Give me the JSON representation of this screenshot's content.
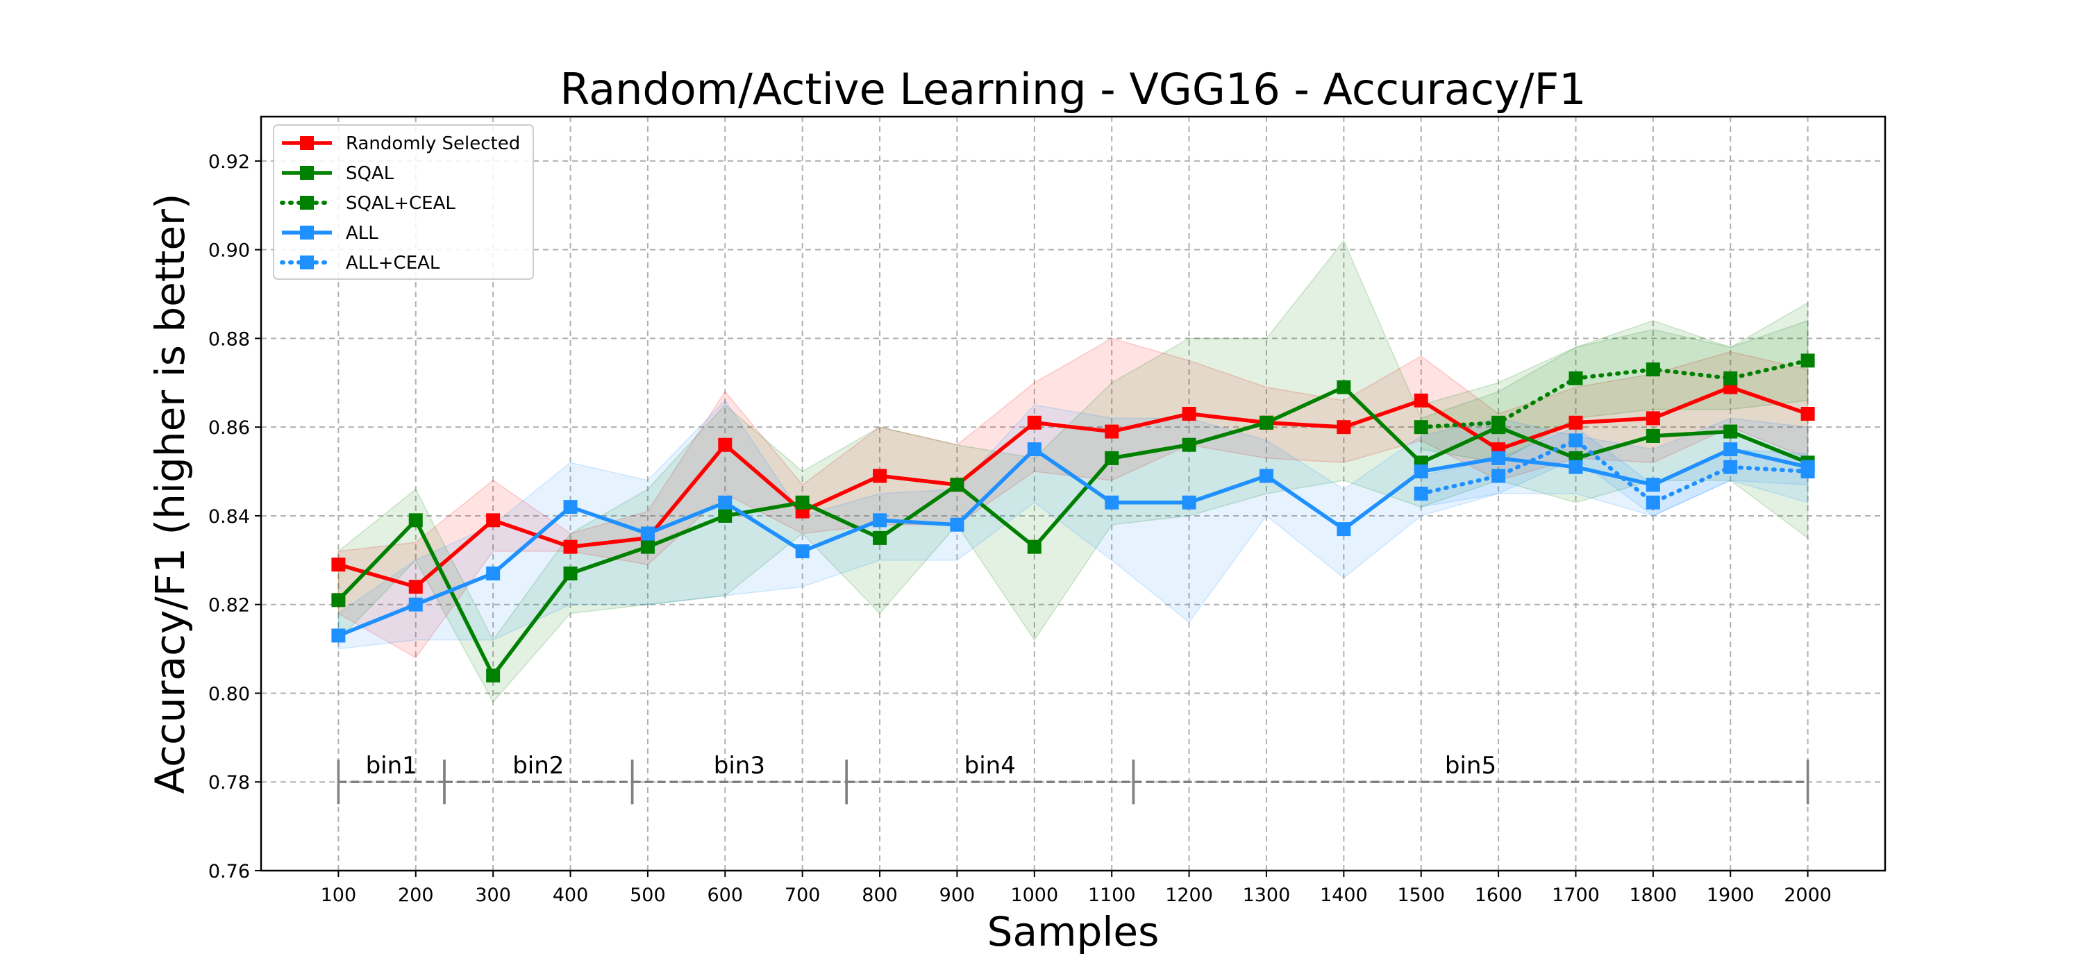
{
  "chart_data": {
    "type": "line",
    "title": "Random/Active Learning - VGG16 - Accuracy/F1",
    "xlabel": "Samples",
    "ylabel": "Accuracy/F1 (higher is better)",
    "xlim": [
      0,
      2100
    ],
    "ylim": [
      0.76,
      0.93
    ],
    "x_ticks": [
      100,
      200,
      300,
      400,
      500,
      600,
      700,
      800,
      900,
      1000,
      1100,
      1200,
      1300,
      1400,
      1500,
      1600,
      1700,
      1800,
      1900,
      2000
    ],
    "x_tick_labels": [
      "100",
      "200",
      "300",
      "400",
      "500",
      "600",
      "700",
      "800",
      "900",
      "1000",
      "1100",
      "1200",
      "1300",
      "1400",
      "1500",
      "1600",
      "1700",
      "1800",
      "1900",
      "2000"
    ],
    "y_ticks": [
      0.76,
      0.78,
      0.8,
      0.82,
      0.84,
      0.86,
      0.88,
      0.9,
      0.92
    ],
    "y_tick_labels": [
      "0.76",
      "0.78",
      "0.80",
      "0.82",
      "0.84",
      "0.86",
      "0.88",
      "0.90",
      "0.92"
    ],
    "grid": true,
    "legend_position": "top-left",
    "series": [
      {
        "name": "Randomly Selected",
        "color": "#ff0000",
        "line_style": "solid",
        "marker": "square",
        "x": [
          100,
          200,
          300,
          400,
          500,
          600,
          700,
          800,
          900,
          1000,
          1100,
          1200,
          1300,
          1400,
          1500,
          1600,
          1700,
          1800,
          1900,
          2000
        ],
        "y": [
          0.829,
          0.824,
          0.839,
          0.833,
          0.835,
          0.856,
          0.841,
          0.849,
          0.847,
          0.861,
          0.859,
          0.863,
          0.861,
          0.86,
          0.866,
          0.855,
          0.861,
          0.862,
          0.869,
          0.863
        ],
        "band_lower": [
          0.818,
          0.808,
          0.832,
          0.832,
          0.829,
          0.845,
          0.836,
          0.838,
          0.838,
          0.85,
          0.848,
          0.856,
          0.853,
          0.852,
          0.857,
          0.848,
          0.853,
          0.852,
          0.86,
          0.853
        ],
        "band_upper": [
          0.832,
          0.834,
          0.848,
          0.836,
          0.841,
          0.868,
          0.847,
          0.86,
          0.856,
          0.87,
          0.88,
          0.875,
          0.869,
          0.866,
          0.876,
          0.863,
          0.869,
          0.872,
          0.877,
          0.873
        ]
      },
      {
        "name": "SQAL",
        "color": "#008000",
        "line_style": "solid",
        "marker": "square",
        "x": [
          100,
          200,
          300,
          400,
          500,
          600,
          700,
          800,
          900,
          1000,
          1100,
          1200,
          1300,
          1400,
          1500,
          1600,
          1700,
          1800,
          1900,
          2000
        ],
        "y": [
          0.821,
          0.839,
          0.804,
          0.827,
          0.833,
          0.84,
          0.843,
          0.835,
          0.847,
          0.833,
          0.853,
          0.856,
          0.861,
          0.869,
          0.852,
          0.86,
          0.853,
          0.858,
          0.859,
          0.852
        ],
        "band_lower": [
          0.812,
          0.83,
          0.798,
          0.818,
          0.82,
          0.822,
          0.836,
          0.818,
          0.838,
          0.812,
          0.838,
          0.84,
          0.845,
          0.848,
          0.842,
          0.848,
          0.843,
          0.848,
          0.848,
          0.835
        ],
        "band_upper": [
          0.832,
          0.846,
          0.812,
          0.836,
          0.846,
          0.865,
          0.85,
          0.86,
          0.856,
          0.853,
          0.87,
          0.88,
          0.88,
          0.902,
          0.862,
          0.868,
          0.878,
          0.884,
          0.878,
          0.888
        ]
      },
      {
        "name": "SQAL+CEAL",
        "color": "#008000",
        "line_style": "dotted",
        "marker": "square",
        "x": [
          1500,
          1600,
          1700,
          1800,
          1900,
          2000
        ],
        "y": [
          0.86,
          0.861,
          0.871,
          0.873,
          0.871,
          0.875
        ],
        "band_lower": [
          0.855,
          0.852,
          0.862,
          0.864,
          0.864,
          0.866
        ],
        "band_upper": [
          0.865,
          0.87,
          0.878,
          0.882,
          0.878,
          0.884
        ]
      },
      {
        "name": "ALL",
        "color": "#1e90ff",
        "line_style": "solid",
        "marker": "square",
        "x": [
          100,
          200,
          300,
          400,
          500,
          600,
          700,
          800,
          900,
          1000,
          1100,
          1200,
          1300,
          1400,
          1500,
          1600,
          1700,
          1800,
          1900,
          2000
        ],
        "y": [
          0.813,
          0.82,
          0.827,
          0.842,
          0.836,
          0.843,
          0.832,
          0.839,
          0.838,
          0.855,
          0.843,
          0.843,
          0.849,
          0.837,
          0.85,
          0.853,
          0.851,
          0.847,
          0.855,
          0.851
        ],
        "band_lower": [
          0.81,
          0.812,
          0.812,
          0.82,
          0.82,
          0.822,
          0.824,
          0.83,
          0.83,
          0.843,
          0.83,
          0.816,
          0.84,
          0.826,
          0.84,
          0.845,
          0.845,
          0.84,
          0.848,
          0.843
        ],
        "band_upper": [
          0.818,
          0.83,
          0.838,
          0.852,
          0.848,
          0.866,
          0.84,
          0.845,
          0.846,
          0.865,
          0.862,
          0.862,
          0.857,
          0.846,
          0.858,
          0.862,
          0.858,
          0.855,
          0.862,
          0.86
        ]
      },
      {
        "name": "ALL+CEAL",
        "color": "#1e90ff",
        "line_style": "dotted",
        "marker": "square",
        "x": [
          1500,
          1600,
          1700,
          1800,
          1900,
          2000
        ],
        "y": [
          0.845,
          0.849,
          0.857,
          0.843,
          0.851,
          0.85
        ],
        "band_lower": [
          0.842,
          0.845,
          0.853,
          0.84,
          0.848,
          0.847
        ],
        "band_upper": [
          0.849,
          0.853,
          0.86,
          0.847,
          0.855,
          0.854
        ]
      }
    ],
    "bins": [
      {
        "label": "bin1",
        "start": 100,
        "end": 237
      },
      {
        "label": "bin2",
        "start": 237,
        "end": 480
      },
      {
        "label": "bin3",
        "start": 480,
        "end": 757
      },
      {
        "label": "bin4",
        "start": 757,
        "end": 1128
      },
      {
        "label": "bin5",
        "start": 1128,
        "end": 2000
      }
    ],
    "bins_y": 0.78,
    "bins_color": "#808080"
  }
}
